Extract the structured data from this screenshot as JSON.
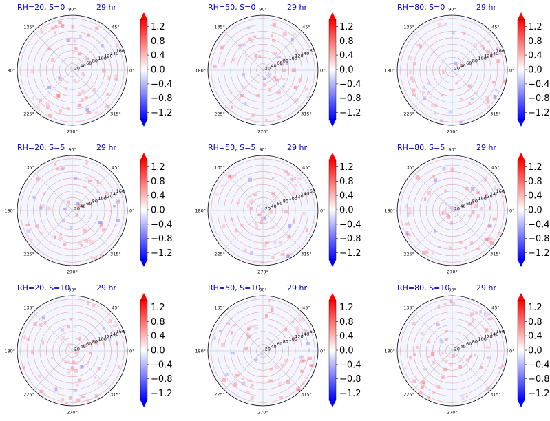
{
  "chart_data": {
    "type": "heatmap",
    "projection": "polar",
    "layout": {
      "rows": 3,
      "cols": 3
    },
    "time_label": "29 hr",
    "angle_ticks": [
      "0°",
      "45°",
      "90°",
      "135°",
      "180°",
      "225°",
      "270°",
      "315°"
    ],
    "radial_ticks": [
      "20",
      "40",
      "60",
      "80",
      "100",
      "120",
      "140",
      "160"
    ],
    "radial_range": [
      0,
      170
    ],
    "colorbar": {
      "ticks": [
        "1.2",
        "0.8",
        "0.4",
        "0.0",
        "−0.4",
        "−0.8",
        "−1.2"
      ],
      "tick_values": [
        1.2,
        0.8,
        0.4,
        0.0,
        -0.4,
        -0.8,
        -1.2
      ],
      "range": [
        -1.4,
        1.4
      ],
      "extend": "both",
      "colormap": "bwr",
      "colors": {
        "low": "#0000ff",
        "mid": "#ffffff",
        "high": "#ff0000"
      }
    },
    "panels": [
      {
        "title": "RH=20, S=0"
      },
      {
        "title": "RH=50, S=0"
      },
      {
        "title": "RH=80, S=0"
      },
      {
        "title": "RH=20, S=5"
      },
      {
        "title": "RH=50, S=5"
      },
      {
        "title": "RH=80, S=5"
      },
      {
        "title": "RH=20, S=10"
      },
      {
        "title": "RH=50, S=10"
      },
      {
        "title": "RH=80, S=10"
      }
    ]
  }
}
